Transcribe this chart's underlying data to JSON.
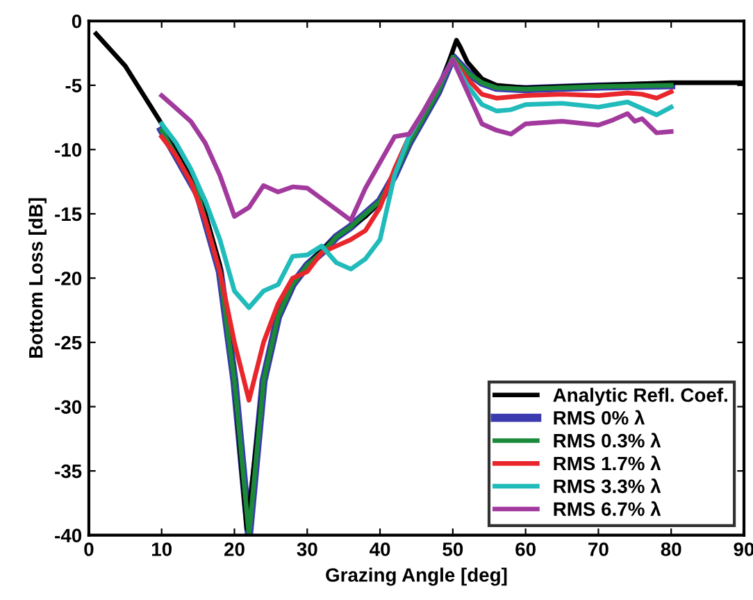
{
  "chart_data": {
    "type": "line",
    "xlabel": "Grazing Angle [deg]",
    "ylabel": "Bottom Loss [dB]",
    "xlim": [
      0,
      90
    ],
    "ylim": [
      -40,
      0
    ],
    "xticks": [
      0,
      10,
      20,
      30,
      40,
      50,
      60,
      70,
      80,
      90
    ],
    "yticks": [
      -40,
      -35,
      -30,
      -25,
      -20,
      -15,
      -10,
      -5,
      0
    ],
    "grid": false,
    "legend": "bottom right",
    "marker": "none",
    "line_style": "solid",
    "series": [
      {
        "name": "Analytic Refl. Coef.",
        "color": "#000000",
        "x": [
          1,
          5,
          10,
          15,
          18,
          20,
          21,
          21.7,
          23,
          24,
          26,
          28,
          30,
          32,
          34,
          36,
          38,
          40,
          42,
          44,
          46,
          48,
          50,
          50.5,
          51,
          52,
          54,
          56,
          60,
          70,
          80,
          90
        ],
        "values": [
          -1,
          -3.5,
          -8,
          -13,
          -19,
          -28,
          -35,
          -39.5,
          -33,
          -28,
          -23,
          -20.5,
          -19,
          -17.8,
          -16.8,
          -16,
          -15.2,
          -14,
          -12,
          -9.5,
          -7.5,
          -5.5,
          -2.3,
          -1.5,
          -2,
          -3.2,
          -4.5,
          -5,
          -5.2,
          -5,
          -4.8,
          -4.8
        ]
      },
      {
        "name": "RMS 0% λ",
        "color": "#3b3bb0",
        "x": [
          10,
          15,
          18,
          20,
          22,
          24,
          26,
          28,
          30,
          32,
          34,
          36,
          38,
          40,
          42,
          44,
          46,
          48,
          50,
          52,
          54,
          56,
          60,
          70,
          80
        ],
        "values": [
          -8.5,
          -13.5,
          -19.5,
          -28,
          -40,
          -28,
          -23,
          -20.5,
          -19,
          -18,
          -16.8,
          -16,
          -15,
          -14,
          -12,
          -9.5,
          -7.5,
          -5.5,
          -2.8,
          -4,
          -4.8,
          -5.2,
          -5.3,
          -5.1,
          -5
        ]
      },
      {
        "name": "RMS 0.3% λ",
        "color": "#1a8a3a",
        "x": [
          10,
          15,
          18,
          20,
          22,
          24,
          26,
          28,
          30,
          32,
          34,
          36,
          38,
          40,
          42,
          44,
          46,
          48,
          50,
          52,
          54,
          56,
          60,
          70,
          80
        ],
        "values": [
          -8.5,
          -13.5,
          -19.5,
          -28,
          -40,
          -28,
          -23,
          -20.5,
          -19,
          -18,
          -16.8,
          -16,
          -15,
          -14,
          -12,
          -9.5,
          -7.5,
          -5.5,
          -2.8,
          -4,
          -4.8,
          -5.2,
          -5.3,
          -5.1,
          -5
        ]
      },
      {
        "name": "RMS 1.7% λ",
        "color": "#e8262b",
        "x": [
          10,
          12,
          14,
          16,
          18,
          20,
          22,
          24,
          26,
          28,
          30,
          32,
          34,
          36,
          38,
          40,
          42,
          44,
          46,
          48,
          50,
          52,
          54,
          56,
          60,
          65,
          70,
          74,
          76,
          78,
          80
        ],
        "values": [
          -9,
          -10.5,
          -12.5,
          -15.5,
          -19.5,
          -25,
          -29.5,
          -25,
          -22,
          -20,
          -19.5,
          -18,
          -17.5,
          -17,
          -16.3,
          -14.5,
          -11.5,
          -9,
          -7,
          -5,
          -3,
          -4.5,
          -5.7,
          -6,
          -5.8,
          -5.7,
          -5.8,
          -5.6,
          -5.7,
          -6,
          -5.5
        ]
      },
      {
        "name": "RMS 3.3% λ",
        "color": "#22bbbb",
        "x": [
          10,
          12,
          14,
          16,
          18,
          20,
          22,
          24,
          26,
          28,
          30,
          32,
          34,
          36,
          38,
          40,
          42,
          44,
          46,
          48,
          50,
          52,
          54,
          56,
          58,
          60,
          65,
          70,
          74,
          76,
          78,
          80
        ],
        "values": [
          -8,
          -9.5,
          -11.5,
          -14,
          -17,
          -21,
          -22.3,
          -21,
          -20.5,
          -18.3,
          -18.2,
          -17.5,
          -18.8,
          -19.3,
          -18.5,
          -17,
          -12,
          -9,
          -7,
          -5,
          -3,
          -5,
          -6.5,
          -7,
          -6.9,
          -6.5,
          -6.4,
          -6.7,
          -6.3,
          -6.8,
          -7.3,
          -6.7
        ]
      },
      {
        "name": "RMS 6.7% λ",
        "color": "#a23a9e",
        "x": [
          10,
          12,
          14,
          16,
          18,
          20,
          22,
          24,
          26,
          28,
          30,
          36,
          38,
          40,
          42,
          44,
          46,
          48,
          50,
          52,
          54,
          56,
          58,
          60,
          65,
          70,
          72,
          74,
          75,
          76,
          78,
          80
        ],
        "values": [
          -5.8,
          -6.8,
          -7.8,
          -9.5,
          -12,
          -15.2,
          -14.5,
          -12.8,
          -13.3,
          -12.9,
          -13,
          -15.5,
          -13,
          -11,
          -9,
          -8.8,
          -7,
          -5,
          -3,
          -5.5,
          -8,
          -8.5,
          -8.8,
          -8,
          -7.8,
          -8.1,
          -7.7,
          -7.2,
          -7.8,
          -7.6,
          -8.7,
          -8.6
        ]
      }
    ]
  }
}
